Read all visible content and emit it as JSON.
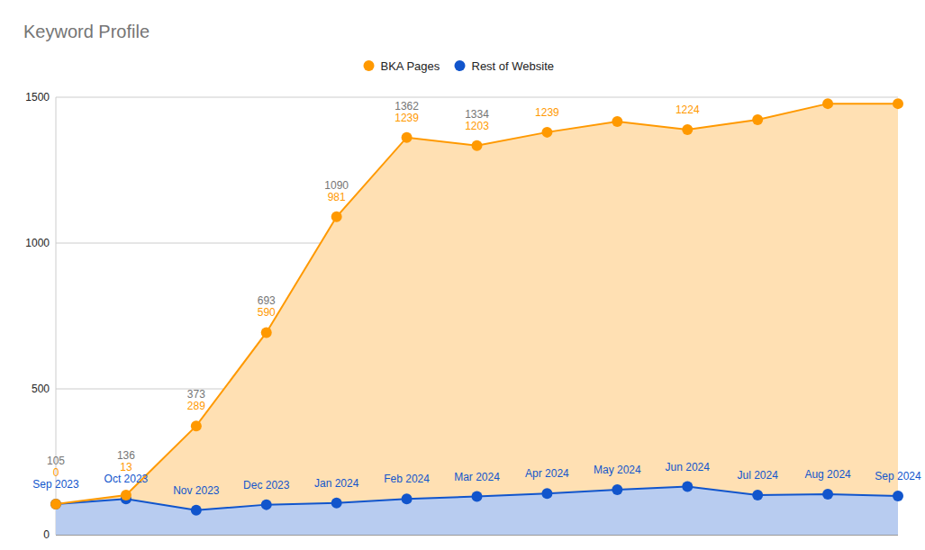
{
  "chart_data": {
    "type": "area",
    "title": "Keyword Profile",
    "categories": [
      "Sep 2023",
      "Oct 2023",
      "Nov 2023",
      "Dec 2023",
      "Jan 2024",
      "Feb 2024",
      "Mar 2024",
      "Apr 2024",
      "May 2024",
      "Jun 2024",
      "Jul 2024",
      "Aug 2024",
      "Sep 2024"
    ],
    "series": [
      {
        "name": "BKA Pages",
        "color": "#ff9900",
        "values": [
          0,
          13,
          289,
          590,
          981,
          1239,
          1203,
          1239,
          1263,
          1224,
          1287,
          1339,
          1345
        ],
        "value_labels": [
          "0",
          "13",
          "289",
          "590",
          "981",
          "1239",
          "1203",
          "1239",
          null,
          "1224",
          null,
          null,
          null
        ]
      },
      {
        "name": "Rest of Website",
        "color": "#1155cc",
        "values": [
          105,
          123,
          84,
          103,
          109,
          123,
          131,
          141,
          154,
          165,
          136,
          139,
          133
        ]
      }
    ],
    "total_labels": [
      "105",
      "136",
      "373",
      "693",
      "1090",
      "1362",
      "1334",
      null,
      null,
      null,
      null,
      null,
      null
    ],
    "stacked": true,
    "data_labels": true,
    "legend": "top",
    "grid": true,
    "marker": "circle",
    "ylim": [
      0,
      1500
    ],
    "yticks": [
      0,
      500,
      1000,
      1500
    ]
  }
}
